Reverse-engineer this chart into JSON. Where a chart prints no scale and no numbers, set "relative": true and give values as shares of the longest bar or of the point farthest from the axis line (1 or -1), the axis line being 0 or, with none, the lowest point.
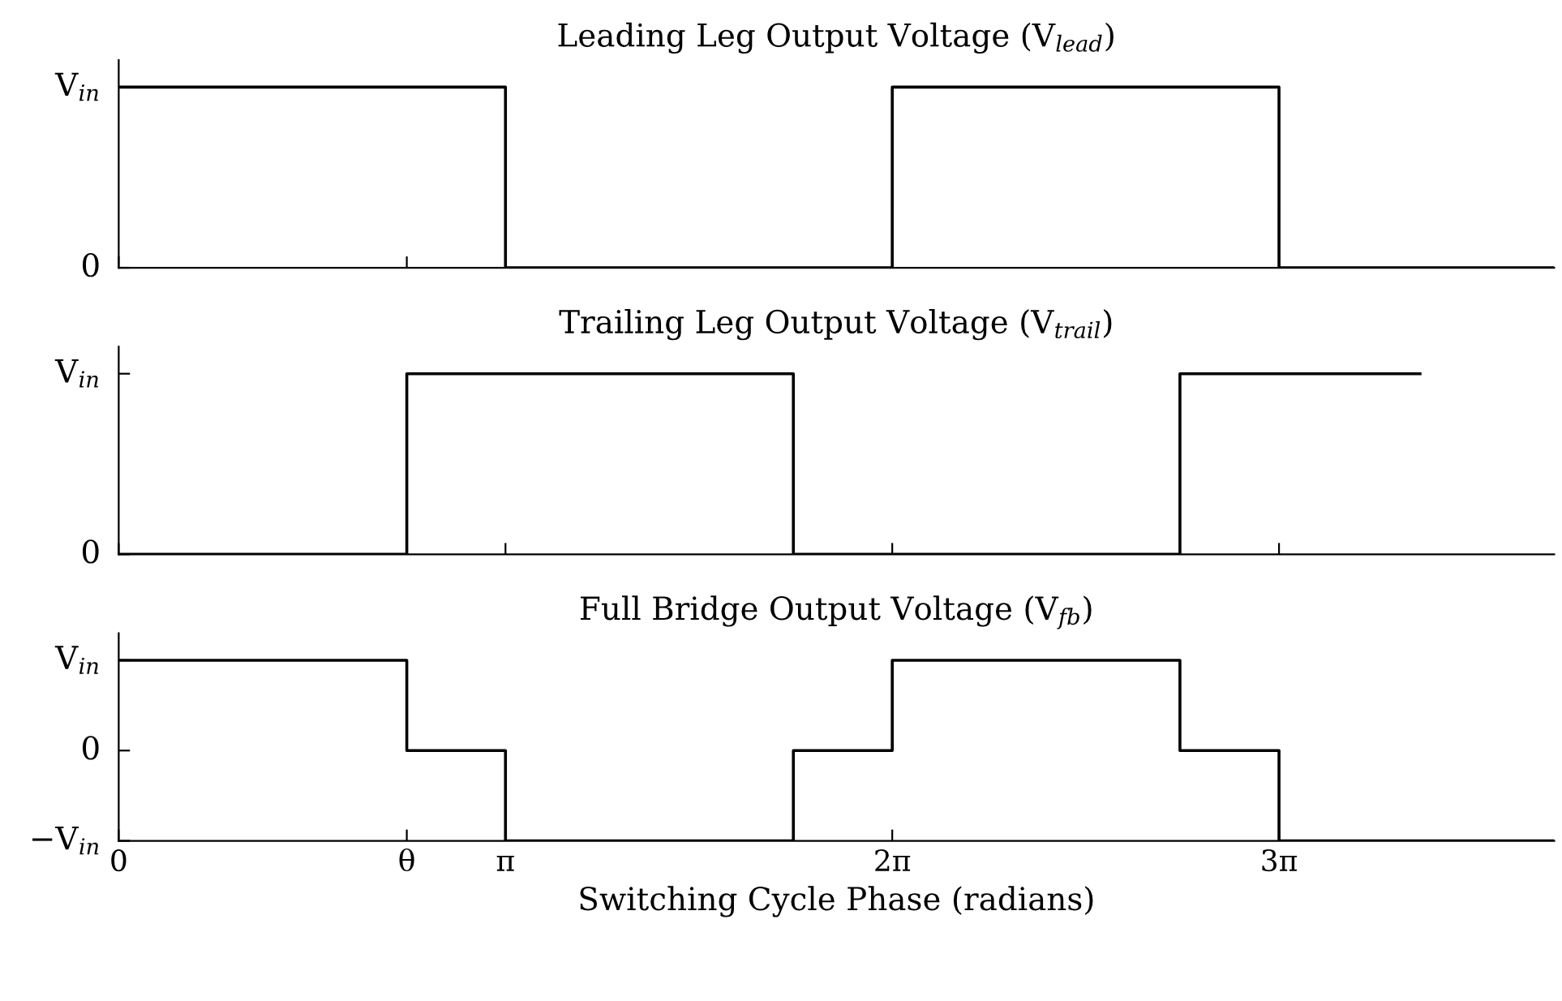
{
  "chart_data": [
    {
      "type": "step",
      "title": "Leading Leg Output Voltage (V$_{lead}$)",
      "relative": true,
      "tick_labels": false,
      "xlim": [
        0,
        11.66
      ],
      "xticks": [
        {
          "value": 0,
          "label": null
        },
        {
          "value": 2.34,
          "label": null
        },
        {
          "value": 3.1416,
          "label": null
        },
        {
          "value": 6.2832,
          "label": null
        },
        {
          "value": 9.4248,
          "label": null
        }
      ],
      "annotations": [
        "0",
        "V$_{in}$"
      ],
      "series": [
        {
          "color": "#000000",
          "x": [
            0,
            3.1416,
            6.2832,
            9.4248,
            11.66
          ],
          "values": [
            1,
            0,
            1,
            0,
            0
          ]
        }
      ]
    },
    {
      "type": "step",
      "title": "Trailing Leg Output Voltage (V$_{trail}$)",
      "relative": true,
      "tick_labels": false,
      "xlim": [
        0,
        11.66
      ],
      "xticks": [
        {
          "value": 0,
          "label": null
        },
        {
          "value": 2.34,
          "label": null
        },
        {
          "value": 3.1416,
          "label": null
        },
        {
          "value": 6.2832,
          "label": null
        },
        {
          "value": 9.4248,
          "label": null
        }
      ],
      "annotations": [
        "0",
        "V$_{in}$"
      ],
      "series": [
        {
          "color": "#000000",
          "x": [
            0,
            2.34,
            5.48,
            8.62,
            10.57
          ],
          "values": [
            0,
            1,
            0,
            1,
            1
          ]
        }
      ]
    },
    {
      "type": "step",
      "title": "Full Bridge Output Voltage (V$_{fb}$)",
      "xlabel": "Switching Cycle Phase (radians)",
      "relative": true,
      "tick_labels": "x",
      "xlim": [
        0,
        11.66
      ],
      "xticks": [
        {
          "value": 0,
          "label": "0"
        },
        {
          "value": 2.34,
          "label": "θ"
        },
        {
          "value": 3.1416,
          "label": "π"
        },
        {
          "value": 6.2832,
          "label": "2π"
        },
        {
          "value": 9.4248,
          "label": "3π"
        }
      ],
      "annotations": [
        "−V$_{in}$",
        "0",
        "V$_{in}$"
      ],
      "series": [
        {
          "color": "#000000",
          "x": [
            0,
            2.34,
            3.1416,
            5.48,
            6.2832,
            8.62,
            9.4248,
            11.66
          ],
          "values": [
            1,
            0.5,
            0,
            0.5,
            1,
            0.5,
            0,
            0
          ]
        }
      ]
    }
  ]
}
